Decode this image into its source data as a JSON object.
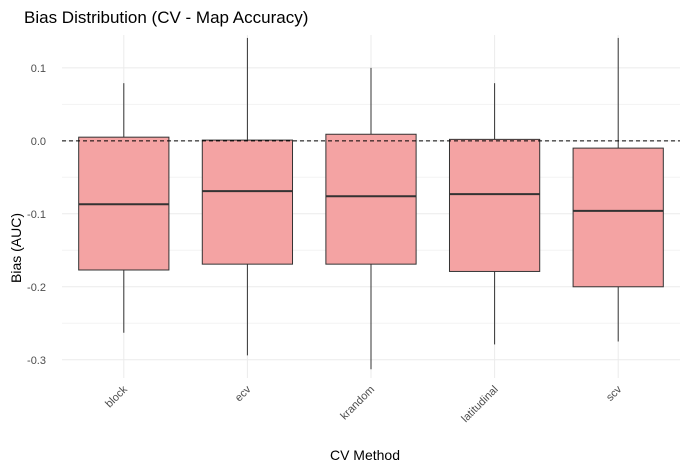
{
  "chart_data": {
    "type": "boxplot",
    "title": "Bias Distribution (CV - Map Accuracy)",
    "xlabel": "CV Method",
    "ylabel": "Bias (AUC)",
    "categories": [
      "block",
      "ecv",
      "krandom",
      "latitudinal",
      "scv"
    ],
    "boxes": [
      {
        "category": "block",
        "whisker_low": -0.263,
        "q1": -0.177,
        "median": -0.087,
        "q3": 0.005,
        "whisker_high": 0.079
      },
      {
        "category": "ecv",
        "whisker_low": -0.294,
        "q1": -0.169,
        "median": -0.069,
        "q3": 0.001,
        "whisker_high": 0.141
      },
      {
        "category": "krandom",
        "whisker_low": -0.313,
        "q1": -0.169,
        "median": -0.076,
        "q3": 0.009,
        "whisker_high": 0.1
      },
      {
        "category": "latitudinal",
        "whisker_low": -0.279,
        "q1": -0.179,
        "median": -0.073,
        "q3": 0.002,
        "whisker_high": 0.079
      },
      {
        "category": "scv",
        "whisker_low": -0.275,
        "q1": -0.2,
        "median": -0.096,
        "q3": -0.01,
        "whisker_high": 0.141
      }
    ],
    "y_ticks": [
      0.1,
      0.0,
      -0.1,
      -0.2,
      -0.3
    ],
    "y_tick_labels": [
      "0.1",
      "0.0",
      "-0.1",
      "-0.2",
      "-0.3"
    ],
    "ylim": [
      -0.325,
      0.145
    ],
    "reference_line": {
      "y": 0.0,
      "style": "dashed"
    },
    "grid": true,
    "legend": "none",
    "colors": {
      "box_fill": "#f4a3a3",
      "box_stroke": "#333333",
      "median": "#333333",
      "whisker": "#333333",
      "grid": "#ebebeb",
      "reference": "#000000"
    }
  }
}
